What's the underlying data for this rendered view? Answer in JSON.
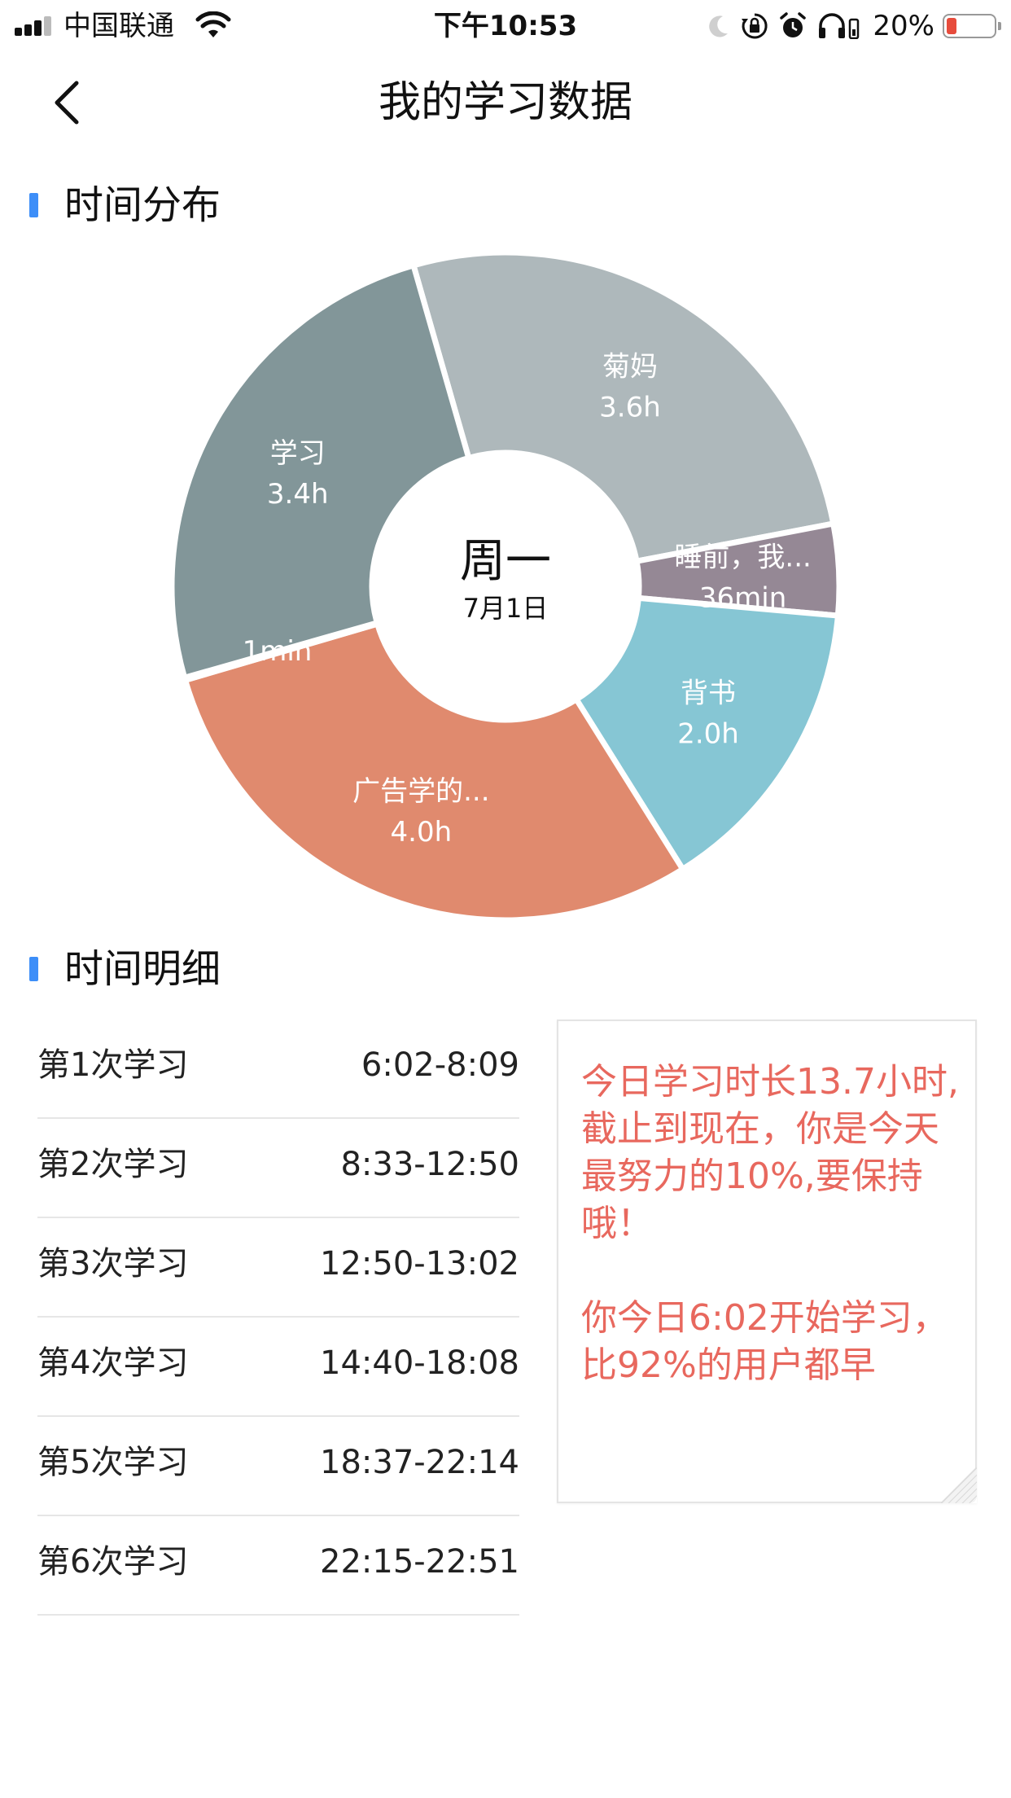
{
  "status_bar": {
    "carrier": "中国联通",
    "time": "下午10:53",
    "battery_percent": "20%",
    "battery_level": 0.2,
    "icons": [
      "signal-icon",
      "wifi-icon",
      "moon-icon",
      "rotation-lock-icon",
      "alarm-icon",
      "headphones-icon"
    ]
  },
  "nav": {
    "back_icon": "chevron-left-icon",
    "title": "我的学习数据"
  },
  "sections": {
    "distribution": "时间分布",
    "details": "时间明细"
  },
  "chart_data": {
    "type": "pie",
    "variant": "donut",
    "center_title": "周一",
    "center_subtitle": "7月1日",
    "slices": [
      {
        "name": "菊妈",
        "label": "3.6h",
        "hours": 3.6,
        "color": "#aeb8bb"
      },
      {
        "name": "睡前，我...",
        "label": "36min",
        "hours": 0.6,
        "color": "#958895"
      },
      {
        "name": "背书",
        "label": "2.0h",
        "hours": 2.0,
        "color": "#86c6d4"
      },
      {
        "name": "广告学的...",
        "label": "4.0h",
        "hours": 4.0,
        "color": "#e08a6e"
      },
      {
        "name": "",
        "label": "1min",
        "hours": 0.0167,
        "color": "#d2d2d2"
      },
      {
        "name": "学习",
        "label": "3.4h",
        "hours": 3.4,
        "color": "#829699"
      }
    ]
  },
  "sessions": [
    {
      "label": "第1次学习",
      "time": "6:02-8:09"
    },
    {
      "label": "第2次学习",
      "time": "8:33-12:50"
    },
    {
      "label": "第3次学习",
      "time": "12:50-13:02"
    },
    {
      "label": "第4次学习",
      "time": "14:40-18:08"
    },
    {
      "label": "第5次学习",
      "time": "18:37-22:14"
    },
    {
      "label": "第6次学习",
      "time": "22:15-22:51"
    }
  ],
  "note": {
    "paragraph1": "今日学习时长13.7小时,截止到现在，你是今天最努力的10%,要保持哦！",
    "paragraph2": "你今日6:02开始学习，比92%的用户都早",
    "color": "#e8685e"
  },
  "colors": {
    "accent": "#3d8ef8"
  }
}
